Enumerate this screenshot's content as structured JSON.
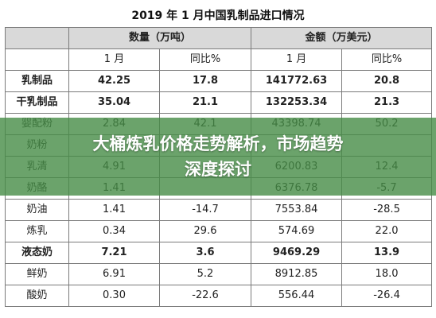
{
  "table": {
    "title": "2019 年 1 月中国乳制品进口情况",
    "group_headers": [
      "数量（万吨）",
      "金额（万美元）"
    ],
    "sub_headers": [
      "1 月",
      "同比%",
      "1 月",
      "同比%"
    ],
    "rows": [
      {
        "name": "乳制品",
        "bold": true,
        "values": [
          "42.25",
          "17.8",
          "141772.63",
          "20.8"
        ]
      },
      {
        "name": "干乳制品",
        "bold": true,
        "values": [
          "35.04",
          "21.1",
          "132253.34",
          "21.3"
        ]
      },
      {
        "name": "婴配粉",
        "bold": false,
        "values": [
          "2.84",
          "42.1",
          "43398.74",
          "50.2"
        ]
      },
      {
        "name": "奶粉",
        "bold": false,
        "values": [
          "",
          "",
          "",
          ""
        ]
      },
      {
        "name": "乳清",
        "bold": false,
        "values": [
          "4.91",
          "",
          "6200.83",
          "12.4"
        ]
      },
      {
        "name": "奶酪",
        "bold": false,
        "values": [
          "1.41",
          "",
          "6376.78",
          "-5.7"
        ]
      },
      {
        "name": "奶油",
        "bold": false,
        "values": [
          "1.41",
          "-14.7",
          "7553.84",
          "-28.5"
        ]
      },
      {
        "name": "炼乳",
        "bold": false,
        "values": [
          "0.34",
          "29.6",
          "574.69",
          "22.0"
        ]
      },
      {
        "name": "液态奶",
        "bold": true,
        "values": [
          "7.21",
          "3.6",
          "9469.29",
          "13.9"
        ]
      },
      {
        "name": "鲜奶",
        "bold": false,
        "values": [
          "6.91",
          "5.2",
          "8912.85",
          "18.0"
        ]
      },
      {
        "name": "酸奶",
        "bold": false,
        "values": [
          "0.30",
          "-22.6",
          "556.44",
          "-26.4"
        ]
      }
    ]
  },
  "banner": {
    "line1": "大桶炼乳价格走势解析，市场趋势",
    "line2": "深度探讨",
    "bg_color": "#468c46"
  }
}
